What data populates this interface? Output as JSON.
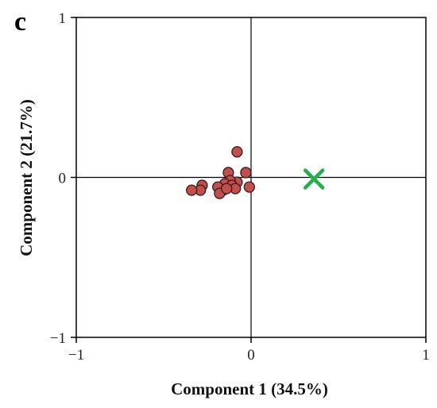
{
  "panel_label": "c",
  "chart_data": {
    "type": "scatter",
    "xlabel": "Component 1 (34.5%)",
    "ylabel": "Component 2 (21.7%)",
    "xlim": [
      -1,
      1
    ],
    "ylim": [
      -1,
      1
    ],
    "x_ticks": [
      {
        "value": -1,
        "label": "−1"
      },
      {
        "value": 0,
        "label": "0"
      },
      {
        "value": 1,
        "label": "1"
      }
    ],
    "y_ticks": [
      {
        "value": 1,
        "label": "1"
      },
      {
        "value": 0,
        "label": "0"
      },
      {
        "value": -1,
        "label": "−1"
      }
    ],
    "zero_lines": true,
    "grid": false,
    "series": [
      {
        "marker": "circle",
        "color": "#c0504d",
        "edge_color": "#3a1a1a",
        "points": [
          {
            "x": -0.08,
            "y": 0.16
          },
          {
            "x": -0.13,
            "y": 0.03
          },
          {
            "x": -0.03,
            "y": 0.03
          },
          {
            "x": -0.01,
            "y": -0.06
          },
          {
            "x": -0.08,
            "y": -0.03
          },
          {
            "x": -0.12,
            "y": -0.02
          },
          {
            "x": -0.15,
            "y": -0.04
          },
          {
            "x": -0.11,
            "y": -0.05
          },
          {
            "x": -0.09,
            "y": -0.07
          },
          {
            "x": -0.16,
            "y": -0.08
          },
          {
            "x": -0.19,
            "y": -0.06
          },
          {
            "x": -0.18,
            "y": -0.1
          },
          {
            "x": -0.28,
            "y": -0.05
          },
          {
            "x": -0.29,
            "y": -0.08
          },
          {
            "x": -0.34,
            "y": -0.08
          },
          {
            "x": -0.14,
            "y": -0.07
          }
        ]
      },
      {
        "marker": "x",
        "color": "#22b04b",
        "points": [
          {
            "x": 0.36,
            "y": -0.01
          }
        ]
      }
    ]
  }
}
